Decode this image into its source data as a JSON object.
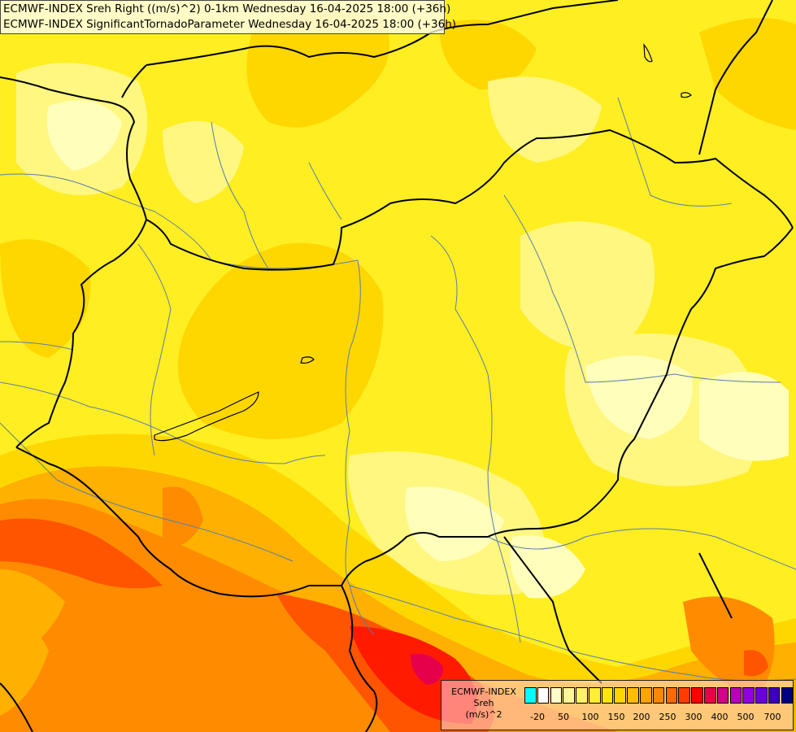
{
  "titles": [
    "ECMWF-INDEX Sreh Right ((m/s)^2) 0-1km Wednesday 16-04-2025 18:00 (+36h)",
    "ECMWF-INDEX SignificantTornadoParameter Wednesday 16-04-2025 18:00 (+36h)"
  ],
  "legend": {
    "title_lines": [
      "ECMWF-INDEX",
      "Sreh",
      "(m/s)^2"
    ],
    "colors": [
      "#00ffff",
      "#ffffff",
      "#fffccc",
      "#fff799",
      "#fff266",
      "#ffee33",
      "#ffe800",
      "#ffd500",
      "#ffbe00",
      "#ffa400",
      "#ff8800",
      "#ff6a00",
      "#ff3c00",
      "#ff0000",
      "#e8004a",
      "#d2008a",
      "#bb00bb",
      "#9000e0",
      "#6a00e0",
      "#3c00b8",
      "#000080"
    ],
    "ticks": [
      "-20",
      "50",
      "100",
      "150",
      "200",
      "250",
      "300",
      "400",
      "500",
      "700"
    ]
  },
  "colors": {
    "pale": "#ffffbb",
    "light_yellow": "#fff780",
    "yellow": "#ffee22",
    "gold": "#ffd700",
    "orange": "#ffb000",
    "dark_orange": "#ff8c00",
    "red_orange": "#ff5500",
    "red": "#ff1a00",
    "magenta_red": "#e6004c",
    "borders": "#000000",
    "rivers": "#5a7ea8"
  }
}
